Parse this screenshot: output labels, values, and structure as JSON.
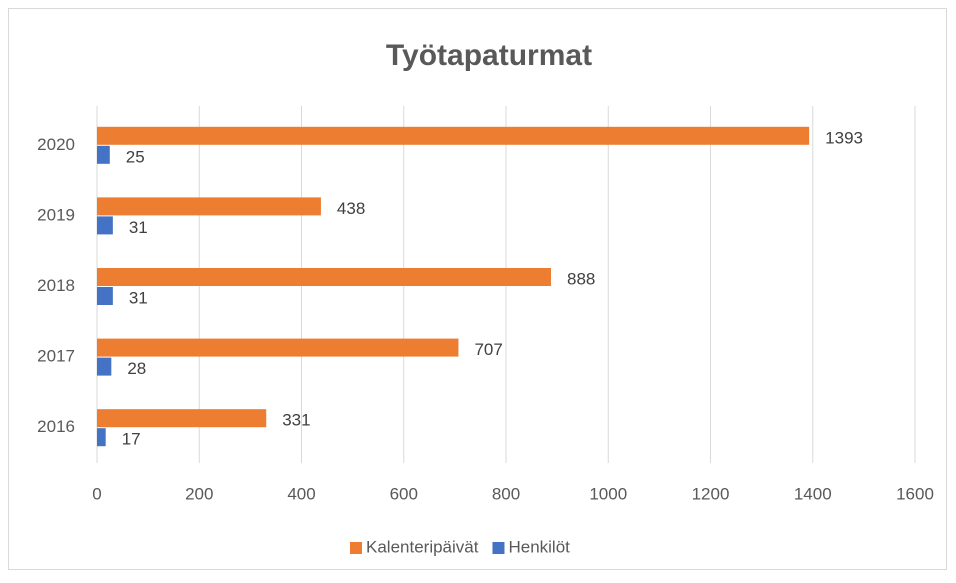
{
  "chart_data": {
    "type": "bar",
    "orientation": "horizontal",
    "title": "Työtapaturmat",
    "categories": [
      "2016",
      "2017",
      "2018",
      "2019",
      "2020"
    ],
    "series": [
      {
        "name": "Kalenteripäivät",
        "color": "#ed7d31",
        "values": [
          331,
          707,
          888,
          438,
          1393
        ]
      },
      {
        "name": "Henkilöt",
        "color": "#4472c4",
        "values": [
          17,
          28,
          31,
          31,
          25
        ]
      }
    ],
    "xlim": [
      0,
      1600
    ],
    "xticks": [
      0,
      200,
      400,
      600,
      800,
      1000,
      1200,
      1400,
      1600
    ],
    "grid": true,
    "legend": "bottom"
  }
}
